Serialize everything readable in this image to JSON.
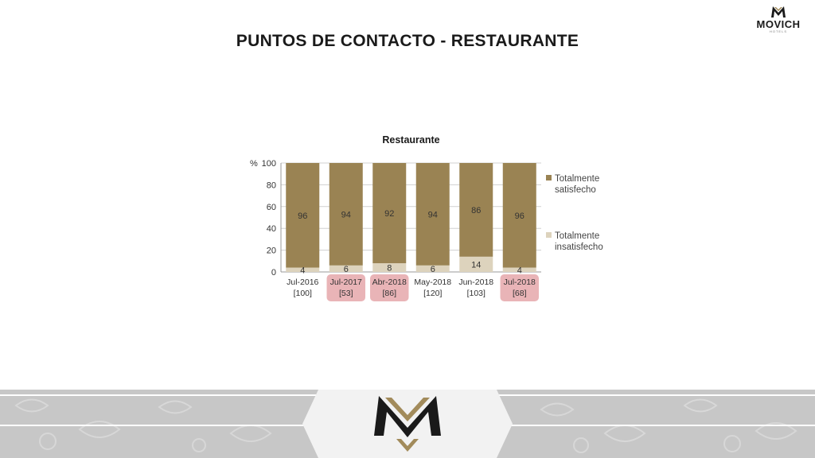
{
  "slide": {
    "title": "PUNTOS DE CONTACTO - RESTAURANTE"
  },
  "brand": {
    "name": "MOVICH",
    "tagline": "HOTELS"
  },
  "colors": {
    "satisfied": "#9a8353",
    "unsatisfied": "#ddd3bd",
    "highlight": "#e9b4b7",
    "gold": "#a28b5b",
    "dark": "#1a1a1a"
  },
  "chart_data": {
    "type": "bar",
    "stacked": true,
    "title": "Restaurante",
    "ylabel": "%",
    "ylim": [
      0,
      100
    ],
    "yticks": [
      0,
      20,
      40,
      60,
      80,
      100
    ],
    "grid": true,
    "legend_position": "right",
    "categories": [
      "Jul-2016",
      "Jul-2017",
      "Abr-2018",
      "May-2018",
      "Jun-2018",
      "Jul-2018"
    ],
    "sample_sizes": [
      "[100]",
      "[53]",
      "[86]",
      "[120]",
      "[103]",
      "[68]"
    ],
    "highlighted_categories": [
      "Jul-2017",
      "Abr-2018",
      "Jul-2018"
    ],
    "series": [
      {
        "name": "Totalmente insatisfecho",
        "legend_lines": [
          "Totalmente",
          "insatisfecho"
        ],
        "values": [
          4,
          6,
          8,
          6,
          14,
          4
        ]
      },
      {
        "name": "Totalmente satisfecho",
        "legend_lines": [
          "Totalmente",
          "satisfecho"
        ],
        "values": [
          96,
          94,
          92,
          94,
          86,
          96
        ]
      }
    ]
  }
}
